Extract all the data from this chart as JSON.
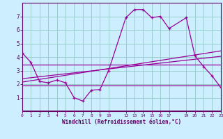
{
  "xlabel": "Windchill (Refroidissement éolien,°C)",
  "background_color": "#cceeff",
  "grid_color": "#99cccc",
  "line_color": "#990099",
  "spine_color": "#660066",
  "xlim": [
    0,
    23
  ],
  "ylim": [
    0,
    8
  ],
  "xticks": [
    0,
    1,
    2,
    3,
    4,
    5,
    6,
    7,
    8,
    9,
    10,
    12,
    13,
    14,
    15,
    16,
    17,
    19,
    20,
    21,
    22,
    23
  ],
  "yticks": [
    1,
    2,
    3,
    4,
    5,
    6,
    7
  ],
  "series1_x": [
    0,
    1,
    2,
    3,
    4,
    5,
    6,
    7,
    8,
    9,
    10,
    12,
    13,
    14,
    15,
    16,
    17,
    19,
    20,
    21,
    22,
    23
  ],
  "series1_y": [
    4.3,
    3.6,
    2.2,
    2.1,
    2.3,
    2.1,
    1.0,
    0.75,
    1.55,
    1.6,
    3.0,
    6.9,
    7.5,
    7.5,
    6.9,
    7.0,
    6.1,
    6.9,
    4.1,
    3.3,
    2.6,
    1.75
  ],
  "series2_x": [
    0,
    23
  ],
  "series2_y": [
    3.45,
    3.45
  ],
  "series3_x": [
    0,
    19,
    23
  ],
  "series3_y": [
    1.9,
    1.9,
    1.9
  ],
  "series4_x": [
    0,
    23
  ],
  "series4_y": [
    2.15,
    4.45
  ],
  "series5_x": [
    0,
    23
  ],
  "series5_y": [
    2.4,
    4.05
  ]
}
